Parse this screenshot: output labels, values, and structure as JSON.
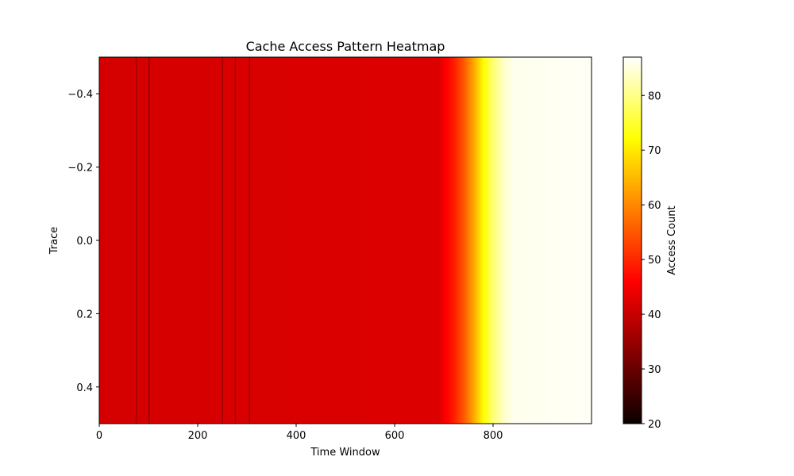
{
  "chart_data": {
    "type": "heatmap",
    "title": "Cache Access Pattern Heatmap",
    "xlabel": "Time Window",
    "ylabel": "Trace",
    "xlim": [
      0,
      1000
    ],
    "ylim": [
      0.5,
      -0.5
    ],
    "y_inverted": true,
    "xticks": [
      0,
      200,
      400,
      600,
      800
    ],
    "yticks": [
      -0.4,
      -0.2,
      0.0,
      0.2,
      0.4
    ],
    "ytick_labels": [
      "−0.4",
      "−0.2",
      "0.0",
      "0.2",
      "0.4"
    ],
    "colormap": "hot",
    "colorbar": {
      "label": "Access Count",
      "range": [
        20,
        87
      ],
      "ticks": [
        20,
        30,
        40,
        50,
        60,
        70,
        80
      ]
    },
    "grid": false,
    "rows": 1,
    "x_start": 0,
    "x_step": 1,
    "value_profile": [
      [
        0,
        41.5
      ],
      [
        690,
        42.5
      ],
      [
        700,
        45
      ],
      [
        720,
        49
      ],
      [
        740,
        55
      ],
      [
        760,
        63
      ],
      [
        780,
        72
      ],
      [
        800,
        79
      ],
      [
        820,
        83.5
      ],
      [
        840,
        86
      ],
      [
        999,
        86.5
      ]
    ],
    "dark_stripes": [
      {
        "x": 74,
        "value": 36
      },
      {
        "x": 100,
        "value": 33
      },
      {
        "x": 249,
        "value": 36
      },
      {
        "x": 275,
        "value": 37
      },
      {
        "x": 304,
        "value": 35
      }
    ]
  }
}
